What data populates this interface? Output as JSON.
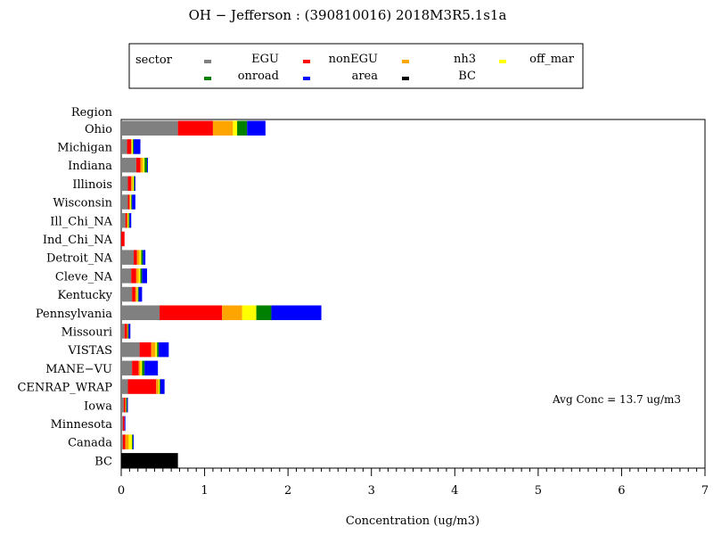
{
  "chart_data": {
    "type": "bar",
    "orientation": "horizontal",
    "stacked": true,
    "title": "OH  −  Jefferson  :  (390810016)  2018M3R5.1s1a",
    "xlabel": "Concentration  (ug/m3)",
    "ylabel": "Region",
    "xlim": [
      0,
      7
    ],
    "xticks": [
      0,
      1,
      2,
      3,
      4,
      5,
      6,
      7
    ],
    "grid": false,
    "legend_title": "sector",
    "legend_placement": "top-center",
    "annotation": "Avg Conc  =  13.7 ug/m3",
    "categories": [
      "Ohio",
      "Michigan",
      "Indiana",
      "Illinois",
      "Wisconsin",
      "Ill_Chi_NA",
      "Ind_Chi_NA",
      "Detroit_NA",
      "Cleve_NA",
      "Kentucky",
      "Pennsylvania",
      "Missouri",
      "VISTAS",
      "MANE−VU",
      "CENRAP_WRAP",
      "Iowa",
      "Minnesota",
      "Canada",
      "BC"
    ],
    "series": [
      {
        "name": "EGU",
        "color": "#808080",
        "values": [
          0.68,
          0.07,
          0.18,
          0.08,
          0.08,
          0.05,
          0.0,
          0.15,
          0.12,
          0.13,
          0.46,
          0.04,
          0.22,
          0.13,
          0.08,
          0.03,
          0.02,
          0.02,
          0.0
        ]
      },
      {
        "name": "nonEGU",
        "color": "#ff0000",
        "values": [
          0.42,
          0.05,
          0.05,
          0.04,
          0.02,
          0.02,
          0.04,
          0.04,
          0.06,
          0.04,
          0.75,
          0.03,
          0.14,
          0.08,
          0.34,
          0.02,
          0.02,
          0.03,
          0.0
        ]
      },
      {
        "name": "nh3",
        "color": "#ffa500",
        "values": [
          0.24,
          0.01,
          0.03,
          0.02,
          0.01,
          0.01,
          0.0,
          0.03,
          0.03,
          0.02,
          0.24,
          0.01,
          0.05,
          0.02,
          0.03,
          0.01,
          0.0,
          0.04,
          0.0
        ]
      },
      {
        "name": "off_mar",
        "color": "#ffff00",
        "values": [
          0.05,
          0.01,
          0.02,
          0.01,
          0.01,
          0.01,
          0.0,
          0.02,
          0.02,
          0.01,
          0.17,
          0.0,
          0.02,
          0.02,
          0.01,
          0.0,
          0.0,
          0.04,
          0.0
        ]
      },
      {
        "name": "onroad",
        "color": "#008000",
        "values": [
          0.12,
          0.01,
          0.03,
          0.01,
          0.01,
          0.01,
          0.0,
          0.02,
          0.02,
          0.01,
          0.18,
          0.01,
          0.02,
          0.03,
          0.01,
          0.01,
          0.0,
          0.01,
          0.0
        ]
      },
      {
        "name": "area",
        "color": "#0000ff",
        "values": [
          0.22,
          0.08,
          0.01,
          0.01,
          0.04,
          0.02,
          0.0,
          0.03,
          0.06,
          0.04,
          0.6,
          0.02,
          0.12,
          0.16,
          0.05,
          0.01,
          0.01,
          0.01,
          0.0
        ]
      },
      {
        "name": "BC",
        "color": "#000000",
        "values": [
          0.0,
          0.0,
          0.0,
          0.0,
          0.0,
          0.0,
          0.0,
          0.0,
          0.0,
          0.0,
          0.0,
          0.0,
          0.0,
          0.0,
          0.0,
          0.0,
          0.0,
          0.0,
          0.68
        ]
      }
    ]
  }
}
